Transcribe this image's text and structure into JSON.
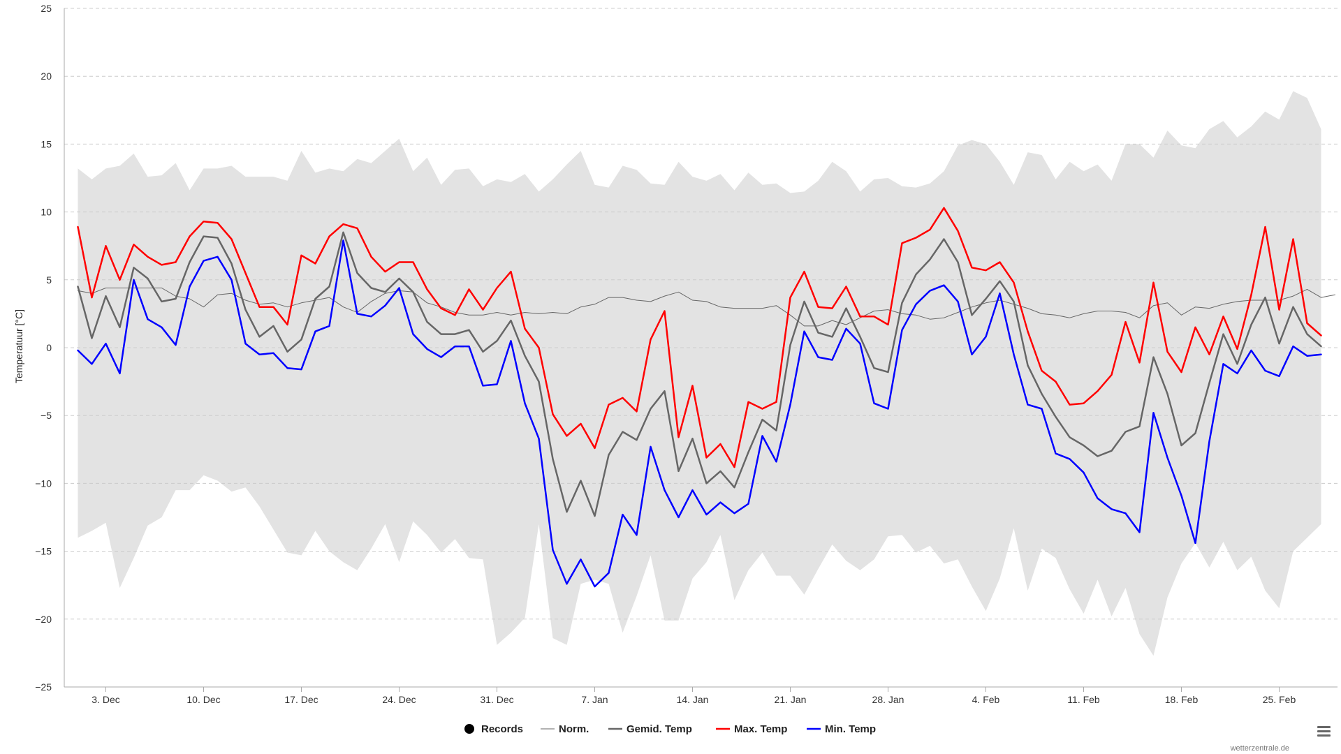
{
  "colors": {
    "records": "#000000",
    "norm": "#666666",
    "gemid": "#666666",
    "max": "#ff0000",
    "min": "#0000ff",
    "band": "#e3e3e3",
    "grid": "#cccccc"
  },
  "menu_icon": "hamburger-menu-icon",
  "credit": "wetterzentrale.de",
  "chart_data": {
    "type": "line",
    "title": "",
    "xlabel": "",
    "ylabel": "Temperatuur [°C]",
    "ylim": [
      -25,
      25
    ],
    "yticks": [
      25,
      20,
      15,
      10,
      5,
      0,
      -5,
      -10,
      -15,
      -20,
      -25
    ],
    "ytick_labels": [
      "25",
      "20",
      "15",
      "10",
      "5",
      "0",
      "−5",
      "−10",
      "−15",
      "−20",
      "−25"
    ],
    "x_day_range": [
      -2,
      90
    ],
    "xticks": [
      {
        "day": 2,
        "label": "3. Dec"
      },
      {
        "day": 9,
        "label": "10. Dec"
      },
      {
        "day": 16,
        "label": "17. Dec"
      },
      {
        "day": 23,
        "label": "24. Dec"
      },
      {
        "day": 30,
        "label": "31. Dec"
      },
      {
        "day": 37,
        "label": "7. Jan"
      },
      {
        "day": 44,
        "label": "14. Jan"
      },
      {
        "day": 51,
        "label": "21. Jan"
      },
      {
        "day": 58,
        "label": "28. Jan"
      },
      {
        "day": 65,
        "label": "4. Feb"
      },
      {
        "day": 72,
        "label": "11. Feb"
      },
      {
        "day": 79,
        "label": "18. Feb"
      },
      {
        "day": 86,
        "label": "25. Feb"
      }
    ],
    "legend": [
      "Records",
      "Norm.",
      "Gemid. Temp",
      "Max. Temp",
      "Min. Temp"
    ],
    "legend_position": "bottom-center",
    "day_labels_note": "day 0 = 1 Dec",
    "record_high": [
      13.2,
      12.4,
      13.2,
      13.4,
      14.3,
      12.6,
      12.7,
      13.6,
      11.6,
      13.2,
      13.2,
      13.4,
      12.6,
      12.6,
      12.6,
      12.3,
      14.5,
      12.9,
      13.2,
      13.0,
      13.9,
      13.6,
      14.5,
      15.4,
      13.0,
      14.0,
      12.0,
      13.1,
      13.2,
      11.9,
      12.4,
      12.2,
      12.8,
      11.5,
      12.4,
      13.5,
      14.5,
      12.0,
      11.8,
      13.4,
      13.1,
      12.1,
      12.0,
      13.7,
      12.6,
      12.3,
      12.8,
      11.6,
      12.9,
      12.0,
      12.1,
      11.4,
      11.5,
      12.3,
      13.7,
      13.0,
      11.5,
      12.4,
      12.5,
      11.9,
      11.8,
      12.1,
      13.0,
      14.9,
      15.3,
      15.0,
      13.7,
      12.0,
      14.4,
      14.2,
      12.4,
      13.7,
      13.0,
      13.5,
      12.3,
      15.0,
      15.0,
      14.0,
      16.0,
      14.9,
      14.7,
      16.1,
      16.7,
      15.5,
      16.3,
      17.4,
      16.8,
      18.9,
      18.4,
      16.1
    ],
    "record_low": [
      -14.0,
      -13.5,
      -12.9,
      -17.7,
      -15.5,
      -13.1,
      -12.5,
      -10.5,
      -10.5,
      -9.4,
      -9.8,
      -10.6,
      -10.3,
      -11.7,
      -13.4,
      -15.1,
      -15.3,
      -13.5,
      -15.0,
      -15.8,
      -16.4,
      -14.8,
      -13.0,
      -15.8,
      -12.8,
      -13.8,
      -15.1,
      -14.1,
      -15.5,
      -15.6,
      -21.9,
      -21.0,
      -19.9,
      -13.0,
      -21.4,
      -21.9,
      -17.4,
      -17.1,
      -17.4,
      -21.0,
      -18.3,
      -15.3,
      -20.1,
      -20.1,
      -17.0,
      -15.8,
      -13.8,
      -18.6,
      -16.4,
      -15.1,
      -16.8,
      -16.8,
      -18.2,
      -16.3,
      -14.5,
      -15.7,
      -16.4,
      -15.6,
      -13.9,
      -13.8,
      -15.1,
      -14.6,
      -15.9,
      -15.6,
      -17.6,
      -19.4,
      -17.0,
      -13.3,
      -17.9,
      -14.8,
      -15.5,
      -17.8,
      -19.6,
      -17.1,
      -19.8,
      -17.7,
      -21.1,
      -22.7,
      -18.4,
      -15.9,
      -14.4,
      -16.2,
      -14.3,
      -16.4,
      -15.4,
      -17.9,
      -19.2,
      -15.0,
      -14.0,
      -13.0
    ],
    "series": [
      {
        "name": "Norm.",
        "values": [
          4.2,
          4.0,
          4.4,
          4.4,
          4.4,
          4.4,
          4.4,
          3.8,
          3.6,
          3.0,
          3.9,
          4.0,
          3.5,
          3.2,
          3.3,
          3.0,
          3.3,
          3.5,
          3.7,
          3.0,
          2.6,
          3.4,
          4.0,
          4.2,
          4.1,
          3.3,
          3.0,
          2.6,
          2.4,
          2.4,
          2.6,
          2.4,
          2.6,
          2.5,
          2.6,
          2.5,
          3.0,
          3.2,
          3.7,
          3.7,
          3.5,
          3.4,
          3.8,
          4.1,
          3.5,
          3.4,
          3.0,
          2.9,
          2.9,
          2.9,
          3.1,
          2.4,
          1.6,
          1.6,
          2.0,
          1.7,
          2.2,
          2.7,
          2.8,
          2.5,
          2.4,
          2.1,
          2.2,
          2.6,
          3.0,
          3.3,
          3.5,
          3.2,
          2.9,
          2.5,
          2.4,
          2.2,
          2.5,
          2.7,
          2.7,
          2.6,
          2.2,
          3.1,
          3.3,
          2.4,
          3.0,
          2.9,
          3.2,
          3.4,
          3.5,
          3.5,
          3.5,
          3.8,
          4.3,
          3.7,
          3.9
        ]
      },
      {
        "name": "Gemid. Temp",
        "values": [
          4.5,
          0.7,
          3.8,
          1.5,
          5.9,
          5.1,
          3.4,
          3.6,
          6.3,
          8.2,
          8.1,
          6.2,
          2.8,
          0.8,
          1.6,
          -0.3,
          0.6,
          3.6,
          4.5,
          8.5,
          5.5,
          4.4,
          4.1,
          5.1,
          4.1,
          1.9,
          1.0,
          1.0,
          1.3,
          -0.3,
          0.5,
          2.0,
          -0.6,
          -2.5,
          -8.2,
          -12.1,
          -9.8,
          -12.4,
          -7.9,
          -6.2,
          -6.8,
          -4.5,
          -3.2,
          -9.1,
          -6.7,
          -10.0,
          -9.1,
          -10.3,
          -7.7,
          -5.3,
          -6.1,
          0.2,
          3.4,
          1.1,
          0.8,
          2.9,
          0.8,
          -1.5,
          -1.8,
          3.3,
          5.4,
          6.5,
          8.0,
          6.3,
          2.4,
          3.6,
          4.9,
          3.4,
          -1.3,
          -3.4,
          -5.1,
          -6.6,
          -7.2,
          -8.0,
          -7.6,
          -6.2,
          -5.8,
          -0.7,
          -3.4,
          -7.2,
          -6.3,
          -2.6,
          1.0,
          -1.2,
          1.7,
          3.7,
          0.3,
          3.0,
          1.0,
          0.1
        ]
      },
      {
        "name": "Max. Temp",
        "values": [
          8.9,
          3.7,
          7.5,
          5.0,
          7.6,
          6.7,
          6.1,
          6.3,
          8.2,
          9.3,
          9.2,
          8.0,
          5.5,
          3.0,
          3.0,
          1.7,
          6.8,
          6.2,
          8.2,
          9.1,
          8.8,
          6.7,
          5.6,
          6.3,
          6.3,
          4.3,
          2.9,
          2.4,
          4.3,
          2.8,
          4.4,
          5.6,
          1.4,
          0.0,
          -4.9,
          -6.5,
          -5.6,
          -7.4,
          -4.2,
          -3.7,
          -4.7,
          0.6,
          2.7,
          -6.6,
          -2.8,
          -8.1,
          -7.1,
          -8.8,
          -4.0,
          -4.5,
          -4.0,
          3.7,
          5.6,
          3.0,
          2.9,
          4.5,
          2.3,
          2.3,
          1.7,
          7.7,
          8.1,
          8.7,
          10.3,
          8.6,
          5.9,
          5.7,
          6.3,
          4.8,
          1.2,
          -1.7,
          -2.5,
          -4.2,
          -4.1,
          -3.2,
          -2.0,
          1.9,
          -1.1,
          4.8,
          -0.3,
          -1.8,
          1.5,
          -0.5,
          2.3,
          -0.1,
          3.9,
          8.9,
          2.8,
          8.0,
          1.8,
          0.9
        ]
      },
      {
        "name": "Min. Temp",
        "values": [
          -0.2,
          -1.2,
          0.3,
          -1.9,
          5.0,
          2.1,
          1.5,
          0.2,
          4.5,
          6.4,
          6.7,
          5.0,
          0.3,
          -0.5,
          -0.4,
          -1.5,
          -1.6,
          1.2,
          1.6,
          7.9,
          2.5,
          2.3,
          3.1,
          4.4,
          1.0,
          -0.1,
          -0.7,
          0.1,
          0.1,
          -2.8,
          -2.7,
          0.5,
          -4.1,
          -6.7,
          -14.9,
          -17.4,
          -15.6,
          -17.6,
          -16.6,
          -12.3,
          -13.8,
          -7.3,
          -10.5,
          -12.5,
          -10.5,
          -12.3,
          -11.4,
          -12.2,
          -11.5,
          -6.5,
          -8.4,
          -4.2,
          1.2,
          -0.7,
          -0.9,
          1.4,
          0.3,
          -4.1,
          -4.5,
          1.3,
          3.2,
          4.2,
          4.6,
          3.4,
          -0.5,
          0.8,
          4.0,
          -0.5,
          -4.2,
          -4.5,
          -7.8,
          -8.2,
          -9.2,
          -11.1,
          -11.9,
          -12.2,
          -13.6,
          -4.8,
          -8.1,
          -10.9,
          -14.4,
          -6.9,
          -1.2,
          -1.9,
          -0.2,
          -1.7,
          -2.1,
          0.1,
          -0.6,
          -0.5
        ]
      }
    ]
  }
}
